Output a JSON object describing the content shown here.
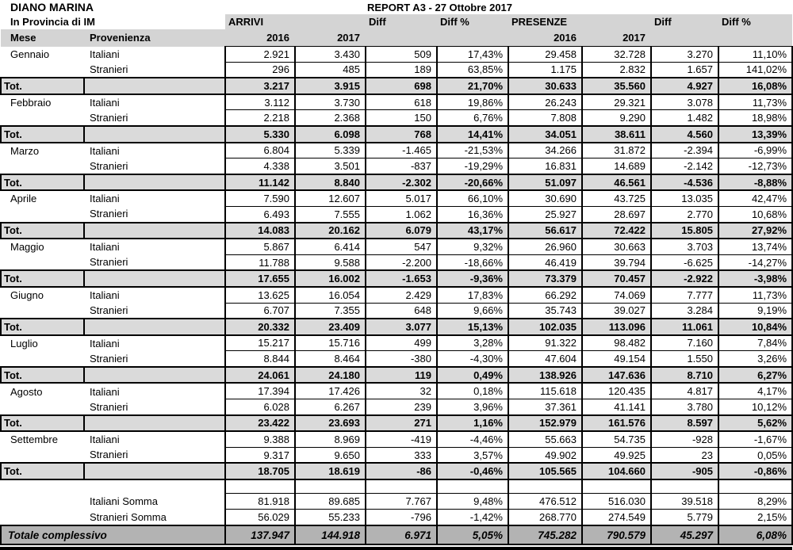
{
  "header": {
    "title_left": "DIANO MARINA",
    "subtitle_left": "In Provincia di IM",
    "report_title": "REPORT A3 - 27 Ottobre 2017"
  },
  "columns": {
    "mese": "Mese",
    "provenienza": "Provenienza",
    "arrivi": "ARRIVI",
    "presenze": "PRESENZE",
    "diff": "Diff",
    "diff_pct": "Diff %",
    "y2016": "2016",
    "y2017": "2017"
  },
  "row_labels": {
    "italiani": "Italiani",
    "stranieri": "Stranieri",
    "tot": "Tot."
  },
  "months": [
    {
      "mese": "Gennaio",
      "italiani": [
        "2.921",
        "3.430",
        "509",
        "17,43%",
        "29.458",
        "32.728",
        "3.270",
        "11,10%"
      ],
      "stranieri": [
        "296",
        "485",
        "189",
        "63,85%",
        "1.175",
        "2.832",
        "1.657",
        "141,02%"
      ],
      "tot": [
        "3.217",
        "3.915",
        "698",
        "21,70%",
        "30.633",
        "35.560",
        "4.927",
        "16,08%"
      ]
    },
    {
      "mese": "Febbraio",
      "italiani": [
        "3.112",
        "3.730",
        "618",
        "19,86%",
        "26.243",
        "29.321",
        "3.078",
        "11,73%"
      ],
      "stranieri": [
        "2.218",
        "2.368",
        "150",
        "6,76%",
        "7.808",
        "9.290",
        "1.482",
        "18,98%"
      ],
      "tot": [
        "5.330",
        "6.098",
        "768",
        "14,41%",
        "34.051",
        "38.611",
        "4.560",
        "13,39%"
      ]
    },
    {
      "mese": "Marzo",
      "italiani": [
        "6.804",
        "5.339",
        "-1.465",
        "-21,53%",
        "34.266",
        "31.872",
        "-2.394",
        "-6,99%"
      ],
      "stranieri": [
        "4.338",
        "3.501",
        "-837",
        "-19,29%",
        "16.831",
        "14.689",
        "-2.142",
        "-12,73%"
      ],
      "tot": [
        "11.142",
        "8.840",
        "-2.302",
        "-20,66%",
        "51.097",
        "46.561",
        "-4.536",
        "-8,88%"
      ]
    },
    {
      "mese": "Aprile",
      "italiani": [
        "7.590",
        "12.607",
        "5.017",
        "66,10%",
        "30.690",
        "43.725",
        "13.035",
        "42,47%"
      ],
      "stranieri": [
        "6.493",
        "7.555",
        "1.062",
        "16,36%",
        "25.927",
        "28.697",
        "2.770",
        "10,68%"
      ],
      "tot": [
        "14.083",
        "20.162",
        "6.079",
        "43,17%",
        "56.617",
        "72.422",
        "15.805",
        "27,92%"
      ]
    },
    {
      "mese": "Maggio",
      "italiani": [
        "5.867",
        "6.414",
        "547",
        "9,32%",
        "26.960",
        "30.663",
        "3.703",
        "13,74%"
      ],
      "stranieri": [
        "11.788",
        "9.588",
        "-2.200",
        "-18,66%",
        "46.419",
        "39.794",
        "-6.625",
        "-14,27%"
      ],
      "tot": [
        "17.655",
        "16.002",
        "-1.653",
        "-9,36%",
        "73.379",
        "70.457",
        "-2.922",
        "-3,98%"
      ]
    },
    {
      "mese": "Giugno",
      "italiani": [
        "13.625",
        "16.054",
        "2.429",
        "17,83%",
        "66.292",
        "74.069",
        "7.777",
        "11,73%"
      ],
      "stranieri": [
        "6.707",
        "7.355",
        "648",
        "9,66%",
        "35.743",
        "39.027",
        "3.284",
        "9,19%"
      ],
      "tot": [
        "20.332",
        "23.409",
        "3.077",
        "15,13%",
        "102.035",
        "113.096",
        "11.061",
        "10,84%"
      ]
    },
    {
      "mese": "Luglio",
      "italiani": [
        "15.217",
        "15.716",
        "499",
        "3,28%",
        "91.322",
        "98.482",
        "7.160",
        "7,84%"
      ],
      "stranieri": [
        "8.844",
        "8.464",
        "-380",
        "-4,30%",
        "47.604",
        "49.154",
        "1.550",
        "3,26%"
      ],
      "tot": [
        "24.061",
        "24.180",
        "119",
        "0,49%",
        "138.926",
        "147.636",
        "8.710",
        "6,27%"
      ]
    },
    {
      "mese": "Agosto",
      "italiani": [
        "17.394",
        "17.426",
        "32",
        "0,18%",
        "115.618",
        "120.435",
        "4.817",
        "4,17%"
      ],
      "stranieri": [
        "6.028",
        "6.267",
        "239",
        "3,96%",
        "37.361",
        "41.141",
        "3.780",
        "10,12%"
      ],
      "tot": [
        "23.422",
        "23.693",
        "271",
        "1,16%",
        "152.979",
        "161.576",
        "8.597",
        "5,62%"
      ]
    },
    {
      "mese": "Settembre",
      "italiani": [
        "9.388",
        "8.969",
        "-419",
        "-4,46%",
        "55.663",
        "54.735",
        "-928",
        "-1,67%"
      ],
      "stranieri": [
        "9.317",
        "9.650",
        "333",
        "3,57%",
        "49.902",
        "49.925",
        "23",
        "0,05%"
      ],
      "tot": [
        "18.705",
        "18.619",
        "-86",
        "-0,46%",
        "105.565",
        "104.660",
        "-905",
        "-0,86%"
      ]
    }
  ],
  "summary": [
    {
      "label": "Italiani Somma",
      "values": [
        "81.918",
        "89.685",
        "7.767",
        "9,48%",
        "476.512",
        "516.030",
        "39.518",
        "8,29%"
      ]
    },
    {
      "label": "Stranieri Somma",
      "values": [
        "56.029",
        "55.233",
        "-796",
        "-1,42%",
        "268.770",
        "274.549",
        "5.779",
        "2,15%"
      ]
    }
  ],
  "grand_total": {
    "label": "Totale complessivo",
    "values": [
      "137.947",
      "144.918",
      "6.971",
      "5,05%",
      "745.282",
      "790.579",
      "45.297",
      "6,08%"
    ]
  },
  "colors": {
    "header_gray": "#d4d4d4",
    "total_row_gray": "#dadada",
    "grand_total_gray": "#b3b3b3",
    "border_black": "#000000"
  }
}
